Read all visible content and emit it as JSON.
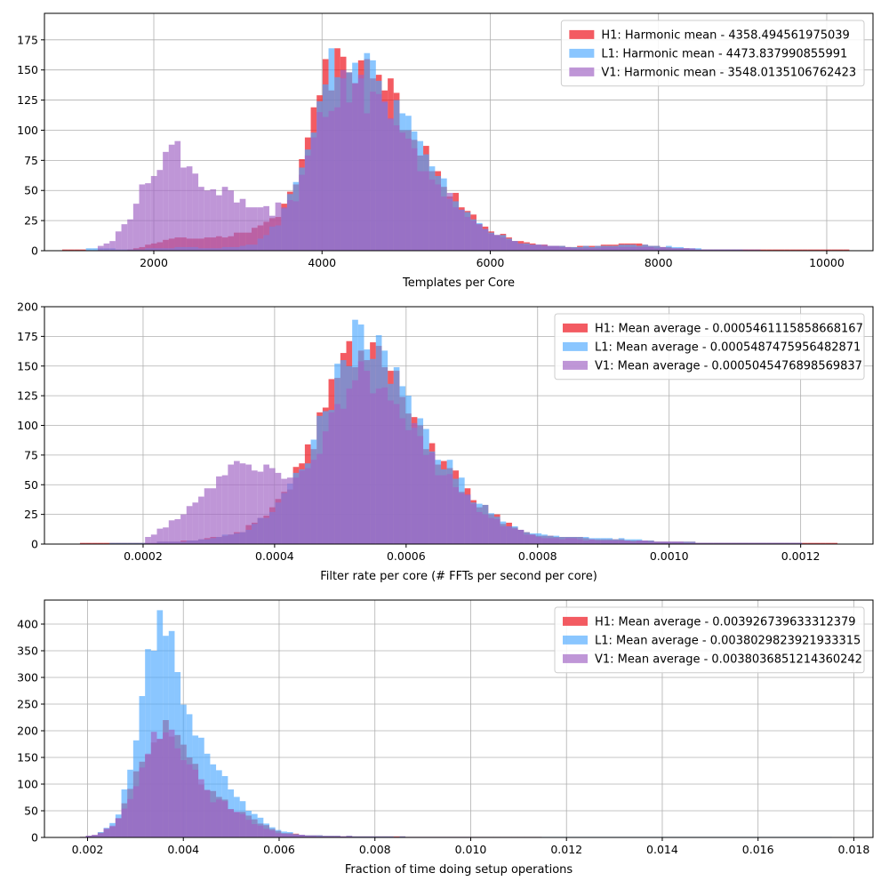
{
  "colors": {
    "H1": "#ee1c25",
    "L1": "#4ba8ff",
    "V1": "#a064c4"
  },
  "chart_data": [
    {
      "type": "histogram",
      "xlabel": "Templates per Core",
      "ylabel": "",
      "xlim": [
        700,
        10550
      ],
      "ylim": [
        0,
        197
      ],
      "xticks": [
        2000,
        4000,
        6000,
        8000,
        10000
      ],
      "xtick_labels": [
        "2000",
        "4000",
        "6000",
        "8000",
        "10000"
      ],
      "yticks": [
        0,
        25,
        50,
        75,
        100,
        125,
        150,
        175
      ],
      "ytick_labels": [
        "0",
        "25",
        "50",
        "75",
        "100",
        "125",
        "150",
        "175"
      ],
      "grid": true,
      "legend": "top-right",
      "series": [
        {
          "name": "H1: Harmonic mean  - 4358.494561975039",
          "key": "H1",
          "profile": [
            [
              900,
              1
            ],
            [
              1200,
              0
            ],
            [
              1700,
              0
            ],
            [
              2000,
              6
            ],
            [
              2300,
              12
            ],
            [
              2700,
              10
            ],
            [
              3100,
              15
            ],
            [
              3500,
              30
            ],
            [
              3800,
              75
            ],
            [
              4000,
              140
            ],
            [
              4300,
              160
            ],
            [
              4550,
              150
            ],
            [
              4800,
              130
            ],
            [
              5100,
              95
            ],
            [
              5500,
              50
            ],
            [
              5900,
              20
            ],
            [
              6400,
              6
            ],
            [
              7000,
              3
            ],
            [
              7600,
              6
            ],
            [
              8000,
              4
            ],
            [
              8600,
              0
            ],
            [
              8900,
              1
            ],
            [
              9700,
              0
            ],
            [
              10250,
              1
            ]
          ]
        },
        {
          "name": "L1: Harmonic mean  - 4473.837990855991",
          "key": "L1",
          "profile": [
            [
              1200,
              2
            ],
            [
              1700,
              1
            ],
            [
              2300,
              3
            ],
            [
              2800,
              2
            ],
            [
              3200,
              5
            ],
            [
              3500,
              25
            ],
            [
              3800,
              70
            ],
            [
              4050,
              145
            ],
            [
              4300,
              165
            ],
            [
              4600,
              145
            ],
            [
              4900,
              115
            ],
            [
              5200,
              80
            ],
            [
              5600,
              40
            ],
            [
              6000,
              15
            ],
            [
              6400,
              6
            ],
            [
              7000,
              3
            ],
            [
              7600,
              5
            ],
            [
              8000,
              4
            ],
            [
              8600,
              1
            ],
            [
              9000,
              0
            ]
          ]
        },
        {
          "name": "V1: Harmonic mean  - 3548.0135106762423",
          "key": "V1",
          "profile": [
            [
              1300,
              2
            ],
            [
              1500,
              8
            ],
            [
              1700,
              25
            ],
            [
              1900,
              55
            ],
            [
              2100,
              75
            ],
            [
              2250,
              85
            ],
            [
              2400,
              70
            ],
            [
              2600,
              55
            ],
            [
              2800,
              50
            ],
            [
              3000,
              42
            ],
            [
              3200,
              35
            ],
            [
              3400,
              32
            ],
            [
              3700,
              45
            ],
            [
              4000,
              115
            ],
            [
              4250,
              140
            ],
            [
              4500,
              130
            ],
            [
              4750,
              115
            ],
            [
              5000,
              90
            ],
            [
              5300,
              60
            ],
            [
              5700,
              30
            ],
            [
              6000,
              14
            ],
            [
              6400,
              6
            ],
            [
              7000,
              2
            ],
            [
              7700,
              3
            ],
            [
              8200,
              2
            ],
            [
              8800,
              1
            ],
            [
              9200,
              0
            ],
            [
              10000,
              0
            ]
          ]
        }
      ]
    },
    {
      "type": "histogram",
      "xlabel": "Filter rate per core (# FFTs per second per core)",
      "ylabel": "",
      "xlim": [
        5e-05,
        0.00131
      ],
      "ylim": [
        0,
        200
      ],
      "xticks": [
        0.0002,
        0.0004,
        0.0006,
        0.0008,
        0.001,
        0.0012
      ],
      "xtick_labels": [
        "0.0002",
        "0.0004",
        "0.0006",
        "0.0008",
        "0.0010",
        "0.0012"
      ],
      "yticks": [
        0,
        25,
        50,
        75,
        100,
        125,
        150,
        175,
        200
      ],
      "ytick_labels": [
        "0",
        "25",
        "50",
        "75",
        "100",
        "125",
        "150",
        "175",
        "200"
      ],
      "grid": true,
      "legend": "top-right",
      "series": [
        {
          "name": "H1: Mean average - 0.0005461115858668167",
          "key": "H1",
          "profile": [
            [
              0.0001,
              1
            ],
            [
              0.00015,
              0
            ],
            [
              0.00025,
              2
            ],
            [
              0.0003,
              5
            ],
            [
              0.00035,
              10
            ],
            [
              0.0004,
              30
            ],
            [
              0.00045,
              75
            ],
            [
              0.0005,
              150
            ],
            [
              0.00053,
              170
            ],
            [
              0.00056,
              160
            ],
            [
              0.0006,
              115
            ],
            [
              0.00065,
              75
            ],
            [
              0.0007,
              38
            ],
            [
              0.00075,
              18
            ],
            [
              0.0008,
              7
            ],
            [
              0.0009,
              4
            ],
            [
              0.001,
              2
            ],
            [
              0.0011,
              1
            ],
            [
              0.00126,
              1
            ]
          ]
        },
        {
          "name": "L1: Mean average - 0.0005487475956482871",
          "key": "L1",
          "profile": [
            [
              0.00015,
              1
            ],
            [
              0.0002,
              1
            ],
            [
              0.00025,
              2
            ],
            [
              0.0003,
              4
            ],
            [
              0.00035,
              10
            ],
            [
              0.0004,
              28
            ],
            [
              0.00045,
              70
            ],
            [
              0.0005,
              145
            ],
            [
              0.00053,
              180
            ],
            [
              0.00056,
              160
            ],
            [
              0.0006,
              120
            ],
            [
              0.00065,
              75
            ],
            [
              0.0007,
              40
            ],
            [
              0.00075,
              18
            ],
            [
              0.0008,
              8
            ],
            [
              0.0009,
              5
            ],
            [
              0.001,
              2
            ],
            [
              0.00108,
              1
            ],
            [
              0.0012,
              0
            ]
          ]
        },
        {
          "name": "V1: Mean average - 0.0005045476898569837",
          "key": "V1",
          "profile": [
            [
              0.0002,
              3
            ],
            [
              0.00022,
              10
            ],
            [
              0.00026,
              25
            ],
            [
              0.0003,
              45
            ],
            [
              0.00033,
              60
            ],
            [
              0.00036,
              72
            ],
            [
              0.00039,
              60
            ],
            [
              0.00042,
              55
            ],
            [
              0.00045,
              60
            ],
            [
              0.00048,
              100
            ],
            [
              0.0005,
              120
            ],
            [
              0.00053,
              145
            ],
            [
              0.00056,
              135
            ],
            [
              0.0006,
              100
            ],
            [
              0.00065,
              65
            ],
            [
              0.0007,
              35
            ],
            [
              0.00075,
              15
            ],
            [
              0.0008,
              6
            ],
            [
              0.0009,
              3
            ],
            [
              0.001,
              2
            ],
            [
              0.0011,
              0
            ],
            [
              0.0012,
              1
            ]
          ]
        }
      ]
    },
    {
      "type": "histogram",
      "xlabel": "Fraction of time doing setup operations",
      "ylabel": "",
      "xlim": [
        0.0011,
        0.0184
      ],
      "ylim": [
        0,
        445
      ],
      "xticks": [
        0.002,
        0.004,
        0.006,
        0.008,
        0.01,
        0.012,
        0.014,
        0.016,
        0.018
      ],
      "xtick_labels": [
        "0.002",
        "0.004",
        "0.006",
        "0.008",
        "0.010",
        "0.012",
        "0.014",
        "0.016",
        "0.018"
      ],
      "yticks": [
        0,
        50,
        100,
        150,
        200,
        250,
        300,
        350,
        400
      ],
      "ytick_labels": [
        "0",
        "50",
        "100",
        "150",
        "200",
        "250",
        "300",
        "350",
        "400"
      ],
      "grid": true,
      "legend": "top-right",
      "series": [
        {
          "name": "H1: Mean average - 0.003926739633312379",
          "key": "H1",
          "profile": [
            [
              0.0018,
              0
            ],
            [
              0.0022,
              5
            ],
            [
              0.0026,
              25
            ],
            [
              0.003,
              110
            ],
            [
              0.0033,
              180
            ],
            [
              0.0035,
              205
            ],
            [
              0.0038,
              195
            ],
            [
              0.004,
              160
            ],
            [
              0.0043,
              120
            ],
            [
              0.0046,
              80
            ],
            [
              0.005,
              60
            ],
            [
              0.0055,
              30
            ],
            [
              0.006,
              10
            ],
            [
              0.0065,
              5
            ],
            [
              0.007,
              3
            ],
            [
              0.008,
              2
            ],
            [
              0.009,
              1
            ],
            [
              0.0095,
              0
            ],
            [
              0.011,
              1
            ],
            [
              0.0115,
              0
            ]
          ]
        },
        {
          "name": "L1: Mean average - 0.0038029823921933315",
          "key": "L1",
          "profile": [
            [
              0.0018,
              0
            ],
            [
              0.0022,
              5
            ],
            [
              0.0026,
              30
            ],
            [
              0.003,
              160
            ],
            [
              0.0032,
              300
            ],
            [
              0.0034,
              400
            ],
            [
              0.0036,
              420
            ],
            [
              0.0038,
              365
            ],
            [
              0.004,
              280
            ],
            [
              0.0043,
              180
            ],
            [
              0.0046,
              130
            ],
            [
              0.005,
              95
            ],
            [
              0.0055,
              40
            ],
            [
              0.006,
              12
            ],
            [
              0.0065,
              5
            ],
            [
              0.007,
              3
            ],
            [
              0.008,
              2
            ],
            [
              0.009,
              1
            ],
            [
              0.0096,
              1
            ],
            [
              0.011,
              0
            ],
            [
              0.0175,
              1
            ]
          ]
        },
        {
          "name": "V1: Mean average - 0.0038036851214360242",
          "key": "V1",
          "profile": [
            [
              0.0018,
              0
            ],
            [
              0.0022,
              5
            ],
            [
              0.0026,
              25
            ],
            [
              0.003,
              100
            ],
            [
              0.0033,
              175
            ],
            [
              0.0035,
              200
            ],
            [
              0.0038,
              185
            ],
            [
              0.004,
              155
            ],
            [
              0.0043,
              110
            ],
            [
              0.0046,
              75
            ],
            [
              0.005,
              55
            ],
            [
              0.0055,
              25
            ],
            [
              0.006,
              8
            ],
            [
              0.0065,
              4
            ],
            [
              0.007,
              2
            ],
            [
              0.008,
              1
            ],
            [
              0.009,
              1
            ],
            [
              0.01,
              0
            ]
          ]
        }
      ]
    }
  ]
}
